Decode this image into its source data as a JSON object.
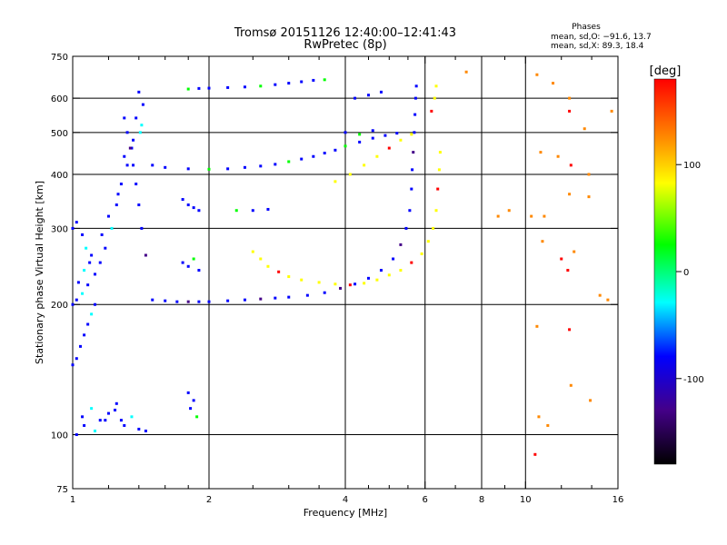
{
  "chart_data": {
    "type": "scatter",
    "title": "Tromsø 20151126 12:40:00–12:41:43",
    "subtitle": "RwPretec (8p)",
    "stats": {
      "header": "Phases",
      "line_o": "mean, sd,O: −91.6, 13.7",
      "line_x": "mean, sd,X:  89.3, 18.4"
    },
    "xlabel": "Frequency [MHz]",
    "ylabel": "Stationary phase Virtual Height [km]",
    "x_scale": "log",
    "y_scale": "log",
    "xlim": [
      1,
      16
    ],
    "ylim": [
      75,
      750
    ],
    "xticks": [
      1,
      2,
      4,
      6,
      8,
      10,
      16
    ],
    "xtick_labels": [
      "1",
      "2",
      "4",
      "6",
      "8",
      "10",
      "16"
    ],
    "x_minor_ticks": [
      1.2,
      1.4,
      1.6,
      1.8,
      2.5,
      3,
      3.5,
      4.5,
      5,
      5.5,
      7,
      9,
      12,
      14
    ],
    "yticks": [
      75,
      100,
      200,
      300,
      400,
      500,
      600,
      750
    ],
    "ytick_labels": [
      "75",
      "100",
      "200",
      "300",
      "400",
      "500",
      "600",
      "750"
    ],
    "x_gridlines": [
      1,
      2,
      4,
      6,
      8,
      10
    ],
    "y_gridlines": [
      100,
      200,
      300,
      400,
      500,
      600
    ],
    "colorbar": {
      "label": "[deg]",
      "range": [
        -180,
        180
      ],
      "ticks": [
        100,
        0,
        -100
      ],
      "tick_labels": [
        "100",
        "0",
        "-100"
      ],
      "colors": [
        "#ff0000",
        "#ff8800",
        "#ffff00",
        "#00ff00",
        "#00ffff",
        "#0000ff",
        "#440088",
        "#000000"
      ]
    },
    "series": [
      {
        "values": [
          [
            1.4,
            620
          ],
          [
            1.43,
            580
          ],
          [
            1.38,
            540
          ],
          [
            1.41,
            500
          ],
          [
            1.35,
            460
          ],
          [
            1.32,
            420
          ],
          [
            1.28,
            380
          ],
          [
            1.25,
            340
          ],
          [
            1.22,
            300
          ],
          [
            1.18,
            270
          ],
          [
            1.15,
            250
          ],
          [
            1.12,
            235
          ],
          [
            1.08,
            222
          ],
          [
            1.05,
            212
          ],
          [
            1.02,
            205
          ],
          [
            1.0,
            200
          ],
          [
            1.3,
            440
          ],
          [
            1.36,
            480
          ],
          [
            1.42,
            520
          ],
          [
            1.26,
            360
          ],
          [
            1.2,
            320
          ],
          [
            1.16,
            290
          ],
          [
            1.1,
            260
          ],
          [
            1.06,
            240
          ],
          [
            1.03,
            225
          ],
          [
            1.0,
            300
          ],
          [
            1.02,
            310
          ],
          [
            1.05,
            290
          ],
          [
            1.07,
            270
          ],
          [
            1.09,
            250
          ],
          [
            1.04,
            160
          ],
          [
            1.06,
            170
          ],
          [
            1.08,
            180
          ],
          [
            1.1,
            190
          ],
          [
            1.12,
            200
          ],
          [
            1.02,
            150
          ],
          [
            1.0,
            145
          ],
          [
            1.05,
            110
          ],
          [
            1.1,
            115
          ],
          [
            1.15,
            108
          ],
          [
            1.2,
            112
          ],
          [
            1.25,
            118
          ],
          [
            1.3,
            105
          ],
          [
            1.35,
            110
          ],
          [
            1.4,
            103
          ],
          [
            1.45,
            102
          ],
          [
            1.02,
            100
          ],
          [
            1.06,
            105
          ],
          [
            1.12,
            102
          ],
          [
            1.18,
            108
          ],
          [
            1.24,
            114
          ],
          [
            1.28,
            108
          ]
        ]
      },
      {
        "values": [
          [
            1.5,
            205
          ],
          [
            1.6,
            204
          ],
          [
            1.7,
            203
          ],
          [
            1.8,
            203
          ],
          [
            1.9,
            203
          ],
          [
            2.0,
            203
          ],
          [
            2.2,
            204
          ],
          [
            2.4,
            205
          ],
          [
            2.6,
            206
          ],
          [
            2.8,
            207
          ],
          [
            3.0,
            208
          ],
          [
            3.3,
            210
          ],
          [
            3.6,
            213
          ],
          [
            3.9,
            218
          ],
          [
            4.2,
            223
          ],
          [
            4.5,
            230
          ],
          [
            4.8,
            240
          ],
          [
            5.1,
            255
          ],
          [
            5.3,
            275
          ],
          [
            5.45,
            300
          ],
          [
            5.55,
            330
          ],
          [
            5.6,
            370
          ],
          [
            5.62,
            410
          ],
          [
            5.65,
            450
          ],
          [
            5.68,
            500
          ],
          [
            5.7,
            550
          ],
          [
            5.72,
            600
          ],
          [
            5.74,
            640
          ],
          [
            1.45,
            260
          ],
          [
            1.42,
            300
          ],
          [
            1.4,
            340
          ],
          [
            1.38,
            380
          ],
          [
            1.36,
            420
          ],
          [
            1.34,
            460
          ],
          [
            1.32,
            500
          ],
          [
            1.3,
            540
          ]
        ]
      },
      {
        "values": [
          [
            2.5,
            265
          ],
          [
            2.6,
            255
          ],
          [
            2.7,
            245
          ],
          [
            2.85,
            238
          ],
          [
            3.0,
            232
          ],
          [
            3.2,
            228
          ],
          [
            3.5,
            225
          ],
          [
            3.8,
            223
          ],
          [
            4.1,
            222
          ],
          [
            4.4,
            224
          ],
          [
            4.7,
            228
          ],
          [
            5.0,
            234
          ],
          [
            5.3,
            240
          ],
          [
            5.6,
            250
          ],
          [
            5.9,
            262
          ],
          [
            6.1,
            280
          ],
          [
            6.25,
            300
          ],
          [
            6.35,
            330
          ],
          [
            6.4,
            370
          ],
          [
            6.45,
            410
          ],
          [
            6.48,
            450
          ],
          [
            6.3,
            600
          ],
          [
            6.35,
            640
          ],
          [
            6.2,
            560
          ],
          [
            3.8,
            385
          ],
          [
            4.1,
            400
          ],
          [
            4.4,
            420
          ],
          [
            4.7,
            440
          ],
          [
            5.0,
            460
          ],
          [
            5.3,
            480
          ],
          [
            5.6,
            495
          ]
        ]
      },
      {
        "values": [
          [
            1.5,
            420
          ],
          [
            1.6,
            415
          ],
          [
            1.8,
            412
          ],
          [
            2.0,
            411
          ],
          [
            2.2,
            412
          ],
          [
            2.4,
            415
          ],
          [
            2.6,
            418
          ],
          [
            2.8,
            422
          ],
          [
            3.0,
            428
          ],
          [
            3.2,
            434
          ],
          [
            3.4,
            440
          ],
          [
            3.6,
            448
          ],
          [
            3.8,
            455
          ],
          [
            4.0,
            465
          ],
          [
            4.3,
            475
          ],
          [
            4.6,
            485
          ],
          [
            4.9,
            492
          ],
          [
            5.2,
            498
          ],
          [
            1.8,
            630
          ],
          [
            1.9,
            632
          ],
          [
            2.0,
            633
          ],
          [
            2.2,
            635
          ],
          [
            2.4,
            637
          ],
          [
            2.6,
            640
          ],
          [
            2.8,
            645
          ],
          [
            3.0,
            650
          ],
          [
            3.2,
            655
          ],
          [
            3.4,
            660
          ],
          [
            3.6,
            662
          ],
          [
            1.75,
            350
          ],
          [
            1.8,
            340
          ],
          [
            1.85,
            335
          ],
          [
            1.9,
            330
          ],
          [
            2.3,
            330
          ],
          [
            2.5,
            330
          ],
          [
            2.7,
            332
          ],
          [
            1.75,
            250
          ],
          [
            1.8,
            245
          ],
          [
            1.85,
            255
          ],
          [
            1.9,
            240
          ],
          [
            1.8,
            125
          ],
          [
            1.85,
            120
          ],
          [
            1.82,
            115
          ],
          [
            1.88,
            110
          ],
          [
            4.2,
            600
          ],
          [
            4.5,
            610
          ],
          [
            4.8,
            620
          ],
          [
            4.0,
            500
          ],
          [
            4.3,
            495
          ],
          [
            4.6,
            505
          ]
        ]
      },
      {
        "values": [
          [
            10.6,
            680
          ],
          [
            11.5,
            650
          ],
          [
            12.5,
            600
          ],
          [
            12.5,
            560
          ],
          [
            13.5,
            510
          ],
          [
            13.8,
            400
          ],
          [
            10.8,
            450
          ],
          [
            11.8,
            440
          ],
          [
            12.6,
            420
          ],
          [
            12.5,
            360
          ],
          [
            13.8,
            355
          ],
          [
            11.0,
            320
          ],
          [
            10.9,
            280
          ],
          [
            12.0,
            255
          ],
          [
            12.8,
            265
          ],
          [
            14.6,
            210
          ],
          [
            15.2,
            205
          ],
          [
            10.6,
            178
          ],
          [
            12.5,
            175
          ],
          [
            10.7,
            110
          ],
          [
            11.2,
            105
          ],
          [
            12.6,
            130
          ],
          [
            13.9,
            120
          ],
          [
            10.5,
            90
          ],
          [
            9.2,
            330
          ],
          [
            8.7,
            320
          ],
          [
            7.4,
            690
          ],
          [
            15.5,
            560
          ],
          [
            12.4,
            240
          ],
          [
            10.3,
            320
          ]
        ]
      }
    ]
  }
}
